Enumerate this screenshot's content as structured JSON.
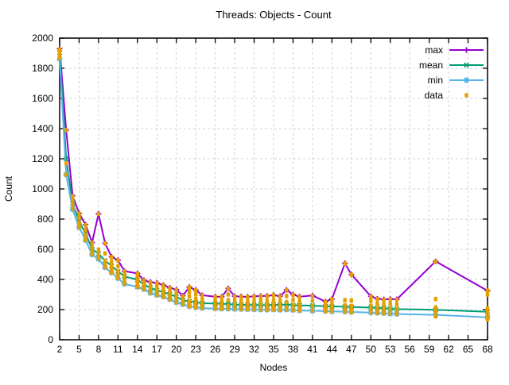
{
  "chart_data": {
    "type": "line",
    "title": "Threads: Objects - Count",
    "xlabel": "Nodes",
    "ylabel": "Count",
    "xlim": [
      2,
      68
    ],
    "ylim": [
      0,
      2000
    ],
    "xticks": [
      2,
      5,
      8,
      11,
      14,
      17,
      20,
      23,
      26,
      29,
      32,
      35,
      38,
      41,
      44,
      47,
      50,
      53,
      56,
      59,
      62,
      65,
      68
    ],
    "yticks": [
      0,
      200,
      400,
      600,
      800,
      1000,
      1200,
      1400,
      1600,
      1800,
      2000
    ],
    "grid": true,
    "legend_position": "top-right-inside",
    "colors": {
      "max": "#9400d3",
      "mean": "#009e73",
      "min": "#56b4e9",
      "data": "#e69f00",
      "grid": "#c8c8c8",
      "axis": "#000000"
    },
    "x": [
      2,
      3,
      4,
      5,
      6,
      7,
      8,
      9,
      10,
      11,
      12,
      14,
      15,
      16,
      17,
      18,
      19,
      20,
      21,
      22,
      23,
      24,
      26,
      27,
      28,
      29,
      30,
      31,
      32,
      33,
      34,
      35,
      36,
      37,
      38,
      39,
      41,
      43,
      44,
      46,
      47,
      50,
      51,
      52,
      53,
      54,
      60,
      68
    ],
    "series": [
      {
        "name": "max",
        "color": "#9400d3",
        "marker": "plus",
        "values": [
          1930,
          1390,
          955,
          838,
          763,
          645,
          835,
          640,
          550,
          528,
          455,
          440,
          395,
          382,
          376,
          363,
          344,
          332,
          292,
          349,
          330,
          295,
          286,
          285,
          340,
          289,
          286,
          285,
          288,
          290,
          291,
          296,
          289,
          330,
          300,
          286,
          293,
          253,
          270,
          507,
          433,
          288,
          272,
          268,
          270,
          268,
          520,
          325
        ]
      },
      {
        "name": "mean",
        "color": "#009e73",
        "marker": "cross",
        "values": [
          1903,
          1200,
          905,
          785,
          705,
          600,
          570,
          525,
          490,
          452,
          420,
          398,
          367,
          342,
          328,
          315,
          302,
          285,
          262,
          255,
          248,
          242,
          240,
          238,
          237,
          233,
          232,
          231,
          230,
          231,
          229,
          233,
          230,
          234,
          230,
          228,
          226,
          222,
          221,
          219,
          217,
          213,
          211,
          209,
          206,
          203,
          199,
          186
        ]
      },
      {
        "name": "min",
        "color": "#56b4e9",
        "marker": "asterisk",
        "values": [
          1862,
          1095,
          865,
          745,
          660,
          565,
          535,
          480,
          445,
          408,
          370,
          350,
          335,
          310,
          296,
          285,
          268,
          248,
          235,
          222,
          215,
          210,
          207,
          206,
          205,
          204,
          203,
          202,
          201,
          200,
          199,
          200,
          198,
          200,
          197,
          194,
          192,
          190,
          188,
          186,
          184,
          180,
          178,
          176,
          173,
          171,
          165,
          149
        ]
      }
    ],
    "scatter": {
      "name": "data",
      "color": "#e69f00",
      "marker": "square",
      "points": [
        {
          "x": 2,
          "y": [
            1925,
            1900,
            1870
          ]
        },
        {
          "x": 3,
          "y": [
            1390,
            1170,
            1095
          ]
        },
        {
          "x": 4,
          "y": [
            952,
            930,
            900,
            868
          ]
        },
        {
          "x": 5,
          "y": [
            836,
            808,
            775,
            748
          ]
        },
        {
          "x": 6,
          "y": [
            760,
            728,
            695,
            662
          ]
        },
        {
          "x": 7,
          "y": [
            643,
            612,
            582,
            566
          ]
        },
        {
          "x": 8,
          "y": [
            835,
            598,
            572,
            550,
            537
          ]
        },
        {
          "x": 9,
          "y": [
            638,
            572,
            523,
            495,
            481
          ]
        },
        {
          "x": 10,
          "y": [
            548,
            515,
            488,
            462,
            447
          ]
        },
        {
          "x": 11,
          "y": [
            526,
            488,
            452,
            425,
            410
          ]
        },
        {
          "x": 12,
          "y": [
            453,
            430,
            412,
            388,
            372
          ]
        },
        {
          "x": 14,
          "y": [
            438,
            415,
            395,
            370,
            352
          ]
        },
        {
          "x": 15,
          "y": [
            393,
            375,
            360,
            345,
            336
          ]
        },
        {
          "x": 16,
          "y": [
            380,
            362,
            340,
            322,
            311
          ]
        },
        {
          "x": 17,
          "y": [
            374,
            352,
            330,
            310,
            297
          ]
        },
        {
          "x": 18,
          "y": [
            361,
            340,
            318,
            298,
            286
          ]
        },
        {
          "x": 19,
          "y": [
            342,
            322,
            300,
            282,
            269
          ]
        },
        {
          "x": 20,
          "y": [
            330,
            308,
            285,
            262,
            249
          ]
        },
        {
          "x": 21,
          "y": [
            290,
            272,
            255,
            237
          ]
        },
        {
          "x": 22,
          "y": [
            347,
            318,
            288,
            252,
            223
          ]
        },
        {
          "x": 23,
          "y": [
            328,
            300,
            270,
            240,
            216
          ]
        },
        {
          "x": 24,
          "y": [
            293,
            265,
            238,
            211
          ]
        },
        {
          "x": 26,
          "y": [
            284,
            258,
            232,
            208
          ]
        },
        {
          "x": 27,
          "y": [
            283,
            256,
            230,
            207
          ]
        },
        {
          "x": 28,
          "y": [
            338,
            300,
            262,
            225,
            206
          ]
        },
        {
          "x": 29,
          "y": [
            288,
            262,
            233,
            205
          ]
        },
        {
          "x": 30,
          "y": [
            284,
            258,
            230,
            204
          ]
        },
        {
          "x": 31,
          "y": [
            283,
            256,
            228,
            203
          ]
        },
        {
          "x": 32,
          "y": [
            286,
            258,
            228,
            202
          ]
        },
        {
          "x": 33,
          "y": [
            288,
            260,
            230,
            201
          ]
        },
        {
          "x": 34,
          "y": [
            289,
            258,
            228,
            200
          ]
        },
        {
          "x": 35,
          "y": [
            294,
            262,
            230,
            201
          ]
        },
        {
          "x": 36,
          "y": [
            287,
            256,
            226,
            199
          ]
        },
        {
          "x": 37,
          "y": [
            328,
            290,
            250,
            215,
            201
          ]
        },
        {
          "x": 38,
          "y": [
            298,
            264,
            230,
            198
          ]
        },
        {
          "x": 39,
          "y": [
            284,
            254,
            224,
            195
          ]
        },
        {
          "x": 41,
          "y": [
            291,
            258,
            224,
            193
          ]
        },
        {
          "x": 43,
          "y": [
            251,
            230,
            210,
            191
          ]
        },
        {
          "x": 44,
          "y": [
            268,
            242,
            215,
            189
          ]
        },
        {
          "x": 46,
          "y": [
            505,
            262,
            228,
            197,
            187
          ]
        },
        {
          "x": 47,
          "y": [
            431,
            260,
            224,
            195,
            185
          ]
        },
        {
          "x": 50,
          "y": [
            286,
            258,
            226,
            198,
            181
          ]
        },
        {
          "x": 51,
          "y": [
            270,
            240,
            208,
            179
          ]
        },
        {
          "x": 52,
          "y": [
            266,
            236,
            205,
            177
          ]
        },
        {
          "x": 53,
          "y": [
            268,
            238,
            206,
            174
          ]
        },
        {
          "x": 54,
          "y": [
            266,
            234,
            202,
            172
          ]
        },
        {
          "x": 60,
          "y": [
            518,
            270,
            214,
            188,
            156
          ]
        },
        {
          "x": 68,
          "y": [
            326,
            300,
            208,
            186,
            152,
            136
          ]
        }
      ]
    }
  }
}
